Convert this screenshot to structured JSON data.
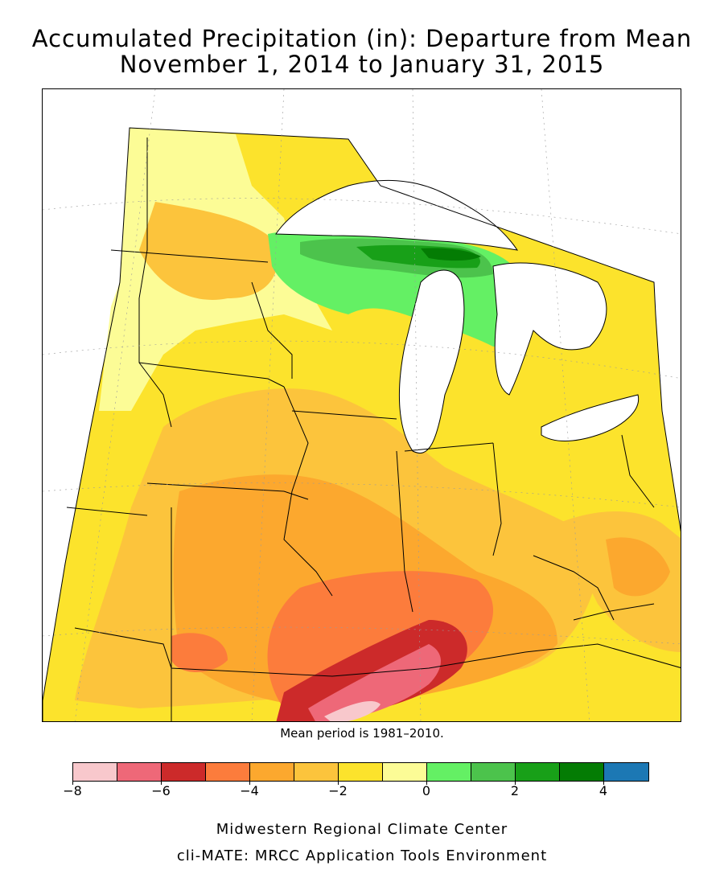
{
  "title_line1": "Accumulated Precipitation (in): Departure from Mean",
  "title_line2": "November 1, 2014 to January 31, 2015",
  "mean_note": "Mean period is 1981–2010.",
  "legend": {
    "ticks": [
      "−8",
      "−6",
      "−4",
      "−2",
      "0",
      "2",
      "4"
    ],
    "tick_values": [
      -8,
      -6,
      -4,
      -2,
      0,
      2,
      4
    ],
    "bins": [
      {
        "from": -8,
        "to": -7,
        "color": "#f8c8cc"
      },
      {
        "from": -7,
        "to": -6,
        "color": "#ee6878"
      },
      {
        "from": -6,
        "to": -5,
        "color": "#cc2a2a"
      },
      {
        "from": -5,
        "to": -4,
        "color": "#fc7c3c"
      },
      {
        "from": -4,
        "to": -3,
        "color": "#fca82e"
      },
      {
        "from": -3,
        "to": -2,
        "color": "#fcc43c"
      },
      {
        "from": -2,
        "to": -1,
        "color": "#fce32c"
      },
      {
        "from": -1,
        "to": 0,
        "color": "#fcfc96"
      },
      {
        "from": 0,
        "to": 1,
        "color": "#64f064"
      },
      {
        "from": 1,
        "to": 2,
        "color": "#4cc34c"
      },
      {
        "from": 2,
        "to": 3,
        "color": "#18a018"
      },
      {
        "from": 3,
        "to": 4,
        "color": "#047c04"
      },
      {
        "from": 4,
        "to": 5,
        "color": "#1c78b4"
      }
    ]
  },
  "colors": {
    "lake_fill": "#ffffff",
    "border_line": "#000000",
    "grid_line": "#9a9a9a"
  },
  "footer_line1": "Midwestern Regional Climate Center",
  "footer_line2": "cli-MATE: MRCC Application Tools Environment"
}
